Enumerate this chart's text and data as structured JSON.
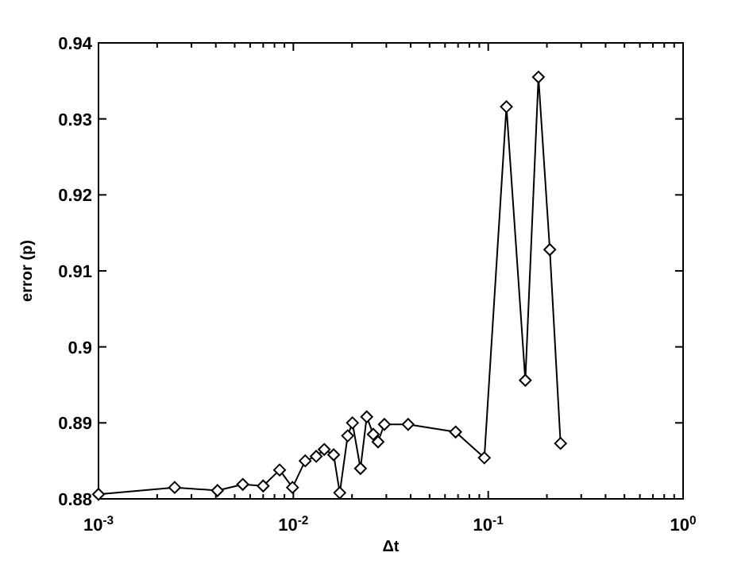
{
  "chart_data": {
    "type": "line",
    "xlabel": "Δt",
    "ylabel": "error (p)",
    "log": "x",
    "marker": "diamond",
    "line_style": "solid",
    "grid": false,
    "xlim": [
      0.001,
      1
    ],
    "xticks": [
      {
        "value": 0.001,
        "label": "10$^{-3}$"
      },
      {
        "value": 0.01,
        "label": "10$^{-2}$"
      },
      {
        "value": 0.1,
        "label": "10$^{-1}$"
      },
      {
        "value": 1,
        "label": "10$^{0}$"
      }
    ],
    "ylim": [
      0.88,
      0.94
    ],
    "yticks": [
      0.88,
      0.89,
      0.9,
      0.91,
      0.92,
      0.93,
      0.94
    ],
    "x": [
      0.001,
      0.00246,
      0.00408,
      0.0055,
      0.007,
      0.0085,
      0.0099,
      0.0115,
      0.0131,
      0.0144,
      0.0161,
      0.0173,
      0.019,
      0.0201,
      0.0221,
      0.0238,
      0.0257,
      0.0272,
      0.0293,
      0.0388,
      0.068,
      0.0955,
      0.124,
      0.155,
      0.181,
      0.207,
      0.235
    ],
    "series": [
      {
        "color": "#000000",
        "values": [
          0.8806,
          0.8815,
          0.8811,
          0.8819,
          0.8817,
          0.8838,
          0.8815,
          0.885,
          0.8856,
          0.8865,
          0.8858,
          0.8808,
          0.8883,
          0.89,
          0.884,
          0.8908,
          0.8885,
          0.8875,
          0.8898,
          0.8898,
          0.8888,
          0.8854,
          0.9316,
          0.8956,
          0.9355,
          0.9128,
          0.8873
        ]
      }
    ]
  }
}
